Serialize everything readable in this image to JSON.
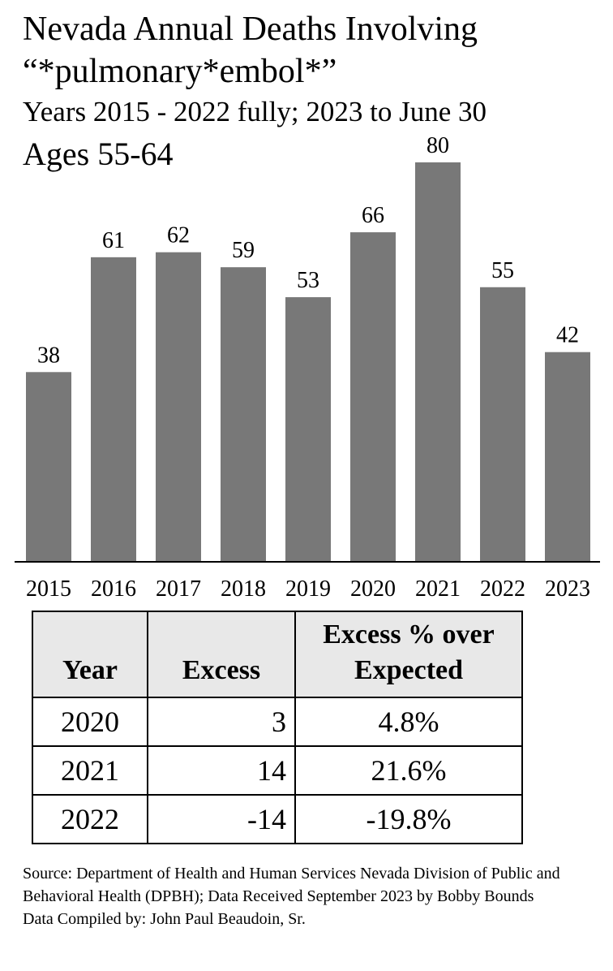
{
  "header": {
    "title_line1": "Nevada Annual Deaths Involving",
    "title_line2": "“*pulmonary*embol*”",
    "subtitle": "Years 2015 - 2022 fully; 2023 to June 30",
    "ages": "Ages 55-64"
  },
  "colors": {
    "bar": "#787878",
    "axis": "#000000",
    "table_header_bg": "#e8e8e8"
  },
  "chart_data": {
    "type": "bar",
    "title": "Nevada Annual Deaths Involving “*pulmonary*embol*”",
    "subtitle": "Years 2015 - 2022 fully; 2023 to June 30",
    "categories": [
      "2015",
      "2016",
      "2017",
      "2018",
      "2019",
      "2020",
      "2021",
      "2022",
      "2023"
    ],
    "values": [
      38,
      61,
      62,
      59,
      53,
      66,
      80,
      55,
      42
    ],
    "xlabel": "",
    "ylabel": "",
    "ylim": [
      0,
      80
    ],
    "grid": false,
    "data_labels": true
  },
  "table": {
    "headers": [
      "Year",
      "Excess",
      "Excess % over Expected"
    ],
    "rows": [
      [
        "2020",
        "3",
        "4.8%"
      ],
      [
        "2021",
        "14",
        "21.6%"
      ],
      [
        "2022",
        "-14",
        "-19.8%"
      ]
    ]
  },
  "source": {
    "line1": "Source:  Department of Health and Human Services Nevada Division of Public and Behavioral Health (DPBH); Data Received September 2023 by Bobby Bounds",
    "line2": "Data Compiled by:  John Paul Beaudoin, Sr."
  }
}
